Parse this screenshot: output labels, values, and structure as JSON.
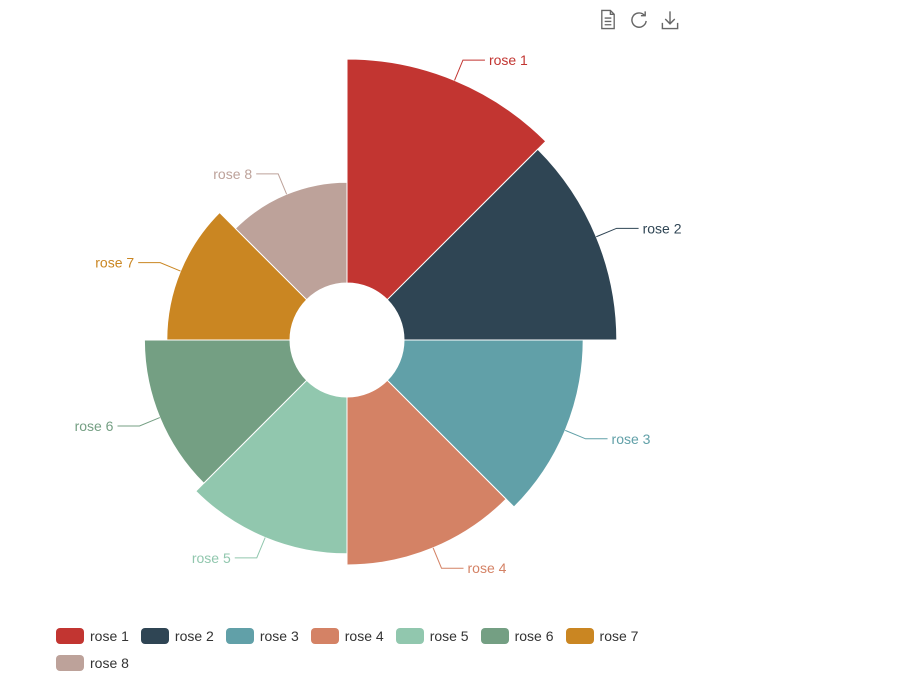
{
  "toolbox": {
    "items": [
      {
        "label": "data view",
        "icon": "document-icon"
      },
      {
        "label": "restore",
        "icon": "refresh-icon"
      },
      {
        "label": "save as image",
        "icon": "download-icon"
      }
    ],
    "color": "#666666"
  },
  "chart_data": {
    "type": "pie",
    "rose_type": "radius",
    "title": "",
    "grid": false,
    "legend_position": "bottom-left",
    "slices": [
      {
        "name": "rose 1",
        "value": 40,
        "color": "#c23531"
      },
      {
        "name": "rose 2",
        "value": 38,
        "color": "#2f4554"
      },
      {
        "name": "rose 3",
        "value": 32,
        "color": "#61a0a8"
      },
      {
        "name": "rose 4",
        "value": 30,
        "color": "#d48265"
      },
      {
        "name": "rose 5",
        "value": 28,
        "color": "#91c7ae"
      },
      {
        "name": "rose 6",
        "value": 26,
        "color": "#749f83"
      },
      {
        "name": "rose 7",
        "value": 22,
        "color": "#ca8622"
      },
      {
        "name": "rose 8",
        "value": 18,
        "color": "#bda29a"
      }
    ]
  }
}
